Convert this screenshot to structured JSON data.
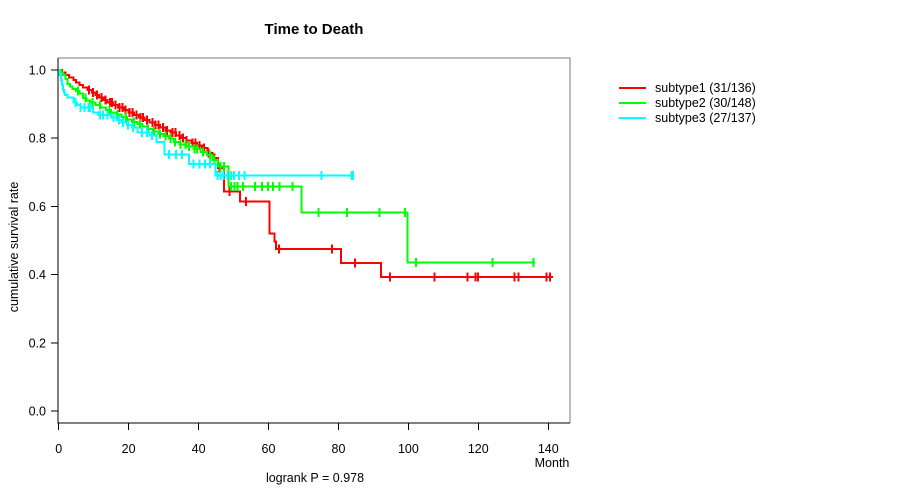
{
  "chart_data": {
    "type": "line",
    "variant": "kaplan-meier-step-curves",
    "title": "Time to Death",
    "xlabel": "Month",
    "ylabel": "cumulative survival rate",
    "annotation": "logrank P = 0.978",
    "xlim": [
      0,
      146
    ],
    "ylim": [
      0,
      1.04
    ],
    "x_ticks": [
      0,
      20,
      40,
      60,
      80,
      100,
      120,
      140
    ],
    "y_ticks": [
      0.0,
      0.2,
      0.4,
      0.6,
      0.8,
      1.0
    ],
    "grid": false,
    "legend_position": "right-outside",
    "axis_color": "#000000",
    "box_color": "#7a7a7a",
    "series": [
      {
        "name": "subtype1 (31/136)",
        "label": "subtype1",
        "events": 31,
        "n": 136,
        "color": "#ff0000",
        "steps": [
          [
            0,
            1.0
          ],
          [
            1.0,
            0.993
          ],
          [
            2.0,
            0.985
          ],
          [
            3.0,
            0.978
          ],
          [
            4.2,
            0.971
          ],
          [
            5.0,
            0.963
          ],
          [
            6.0,
            0.956
          ],
          [
            7.0,
            0.949
          ],
          [
            8.2,
            0.941
          ],
          [
            9.5,
            0.934
          ],
          [
            10.5,
            0.927
          ],
          [
            11.5,
            0.919
          ],
          [
            12.8,
            0.912
          ],
          [
            14.0,
            0.905
          ],
          [
            15.5,
            0.898
          ],
          [
            17.0,
            0.89
          ],
          [
            18.5,
            0.883
          ],
          [
            20.0,
            0.876
          ],
          [
            21.5,
            0.868
          ],
          [
            23.0,
            0.861
          ],
          [
            24.5,
            0.853
          ],
          [
            26.0,
            0.846
          ],
          [
            27.5,
            0.838
          ],
          [
            29.0,
            0.831
          ],
          [
            30.5,
            0.823
          ],
          [
            32.0,
            0.816
          ],
          [
            33.5,
            0.808
          ],
          [
            35.0,
            0.801
          ],
          [
            36.5,
            0.793
          ],
          [
            38.0,
            0.786
          ],
          [
            39.5,
            0.778
          ],
          [
            41.0,
            0.771
          ],
          [
            42.5,
            0.757
          ],
          [
            44.0,
            0.742
          ],
          [
            45.5,
            0.712
          ],
          [
            47.3,
            0.643
          ],
          [
            51.9,
            0.614
          ],
          [
            60.3,
            0.521
          ],
          [
            61.7,
            0.497
          ],
          [
            62.2,
            0.475
          ],
          [
            80.7,
            0.434
          ],
          [
            92.1,
            0.393
          ]
        ],
        "end": 141.4,
        "censors": [
          8.6,
          9.8,
          11.0,
          12.2,
          13.4,
          14.6,
          15.3,
          16.2,
          17.4,
          18.3,
          19.1,
          20.3,
          21.1,
          22.2,
          23.4,
          24.1,
          25.2,
          26.8,
          27.7,
          28.6,
          29.8,
          30.9,
          32.5,
          33.4,
          34.6,
          35.5,
          36.6,
          38.2,
          39.1,
          40.2,
          41.5,
          42.9,
          44.5,
          46.0,
          48.9,
          53.6,
          63.0,
          78.1,
          84.8,
          94.8,
          107.4,
          116.9,
          119.2,
          119.9,
          130.3,
          131.5,
          139.5,
          140.5
        ]
      },
      {
        "name": "subtype2 (30/148)",
        "label": "subtype2",
        "events": 30,
        "n": 148,
        "color": "#00ff00",
        "steps": [
          [
            0,
            1.0
          ],
          [
            0.7,
            0.993
          ],
          [
            1.3,
            0.986
          ],
          [
            1.9,
            0.973
          ],
          [
            2.5,
            0.959
          ],
          [
            3.2,
            0.952
          ],
          [
            4.0,
            0.945
          ],
          [
            5.0,
            0.938
          ],
          [
            6.0,
            0.931
          ],
          [
            7.0,
            0.918
          ],
          [
            8.0,
            0.911
          ],
          [
            9.0,
            0.904
          ],
          [
            10.5,
            0.897
          ],
          [
            12.0,
            0.89
          ],
          [
            13.5,
            0.883
          ],
          [
            15.0,
            0.876
          ],
          [
            16.5,
            0.869
          ],
          [
            18.0,
            0.862
          ],
          [
            19.5,
            0.855
          ],
          [
            21.0,
            0.848
          ],
          [
            22.5,
            0.841
          ],
          [
            24.0,
            0.834
          ],
          [
            25.5,
            0.827
          ],
          [
            27.0,
            0.82
          ],
          [
            28.5,
            0.813
          ],
          [
            30.0,
            0.806
          ],
          [
            31.5,
            0.799
          ],
          [
            33.0,
            0.789
          ],
          [
            34.5,
            0.782
          ],
          [
            36.5,
            0.775
          ],
          [
            38.5,
            0.768
          ],
          [
            40.5,
            0.76
          ],
          [
            42.4,
            0.751
          ],
          [
            44.0,
            0.736
          ],
          [
            45.5,
            0.717
          ],
          [
            48.5,
            0.658
          ],
          [
            69.5,
            0.582
          ],
          [
            99.7,
            0.435
          ]
        ],
        "end": 136.2,
        "censors": [
          5.5,
          7.6,
          9.6,
          11.8,
          14.5,
          16.8,
          19.3,
          21.6,
          23.2,
          25.5,
          27.2,
          29.0,
          30.5,
          32.0,
          33.3,
          34.8,
          36.2,
          37.3,
          38.8,
          39.6,
          41.2,
          43.2,
          44.6,
          46.3,
          47.2,
          49.3,
          50.3,
          51.2,
          52.7,
          56.2,
          58.2,
          59.9,
          61.3,
          63.2,
          66.8,
          74.3,
          82.5,
          91.8,
          99.0,
          102.2,
          124.0,
          135.8
        ]
      },
      {
        "name": "subtype3 (27/137)",
        "label": "subtype3",
        "events": 27,
        "n": 137,
        "color": "#00ffff",
        "steps": [
          [
            0,
            1.0
          ],
          [
            0.3,
            0.985
          ],
          [
            0.6,
            0.971
          ],
          [
            0.9,
            0.956
          ],
          [
            1.2,
            0.942
          ],
          [
            1.5,
            0.934
          ],
          [
            1.8,
            0.926
          ],
          [
            2.5,
            0.919
          ],
          [
            4.3,
            0.904
          ],
          [
            5.2,
            0.897
          ],
          [
            6.2,
            0.89
          ],
          [
            9.8,
            0.876
          ],
          [
            11.2,
            0.868
          ],
          [
            15.0,
            0.861
          ],
          [
            16.5,
            0.853
          ],
          [
            18.0,
            0.846
          ],
          [
            19.5,
            0.838
          ],
          [
            21.0,
            0.831
          ],
          [
            22.5,
            0.816
          ],
          [
            26.0,
            0.808
          ],
          [
            28.0,
            0.789
          ],
          [
            30.2,
            0.752
          ],
          [
            37.2,
            0.724
          ],
          [
            44.8,
            0.691
          ]
        ],
        "end": 84.2,
        "censors": [
          4.8,
          6.3,
          7.4,
          8.5,
          9.0,
          11.8,
          12.6,
          14.0,
          15.6,
          17.2,
          18.4,
          19.8,
          21.3,
          23.8,
          25.3,
          26.7,
          31.5,
          33.5,
          35.2,
          38.5,
          40.3,
          41.8,
          43.3,
          45.4,
          46.3,
          47.1,
          48.2,
          49.2,
          50.1,
          51.6,
          53.2,
          75.1,
          83.7,
          84.2
        ]
      }
    ]
  },
  "legend": {
    "items": [
      {
        "label": "subtype1 (31/136)",
        "color": "#ff0000"
      },
      {
        "label": "subtype2 (30/148)",
        "color": "#00ff00"
      },
      {
        "label": "subtype3 (27/137)",
        "color": "#00ffff"
      }
    ]
  }
}
